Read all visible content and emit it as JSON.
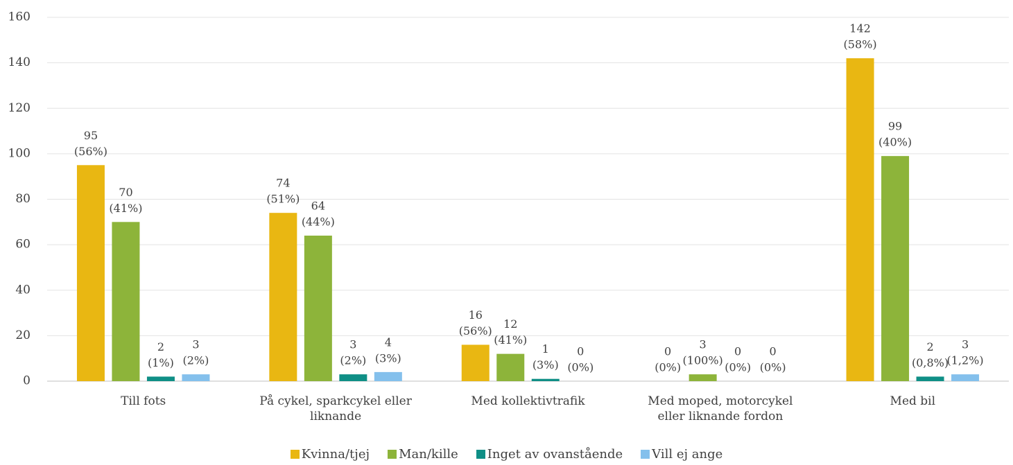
{
  "chart_data": {
    "type": "bar",
    "categories": [
      "Till fots",
      "På cykel, sparkcykel eller liknande",
      "Med kollektivtrafik",
      "Med moped, motorcykel eller liknande fordon",
      "Med bil"
    ],
    "series": [
      {
        "name": "Kvinna/tjej",
        "color": "#e9b712",
        "values": [
          95,
          74,
          16,
          0,
          142
        ],
        "value_labels": [
          [
            "95",
            "(56%)"
          ],
          [
            "74",
            "(51%)"
          ],
          [
            "16",
            "(56%)"
          ],
          [
            "0",
            "(0%)"
          ],
          [
            "142",
            "(58%)"
          ]
        ]
      },
      {
        "name": "Man/kille",
        "color": "#8db43a",
        "values": [
          70,
          64,
          12,
          3,
          99
        ],
        "value_labels": [
          [
            "70",
            "(41%)"
          ],
          [
            "64",
            "(44%)"
          ],
          [
            "12",
            "(41%)"
          ],
          [
            "3",
            "(100%)"
          ],
          [
            "99",
            "(40%)"
          ]
        ]
      },
      {
        "name": "Inget av ovanstående",
        "color": "#0f8f86",
        "values": [
          2,
          3,
          1,
          0,
          2
        ],
        "value_labels": [
          [
            "2",
            "(1%)"
          ],
          [
            "3",
            "(2%)"
          ],
          [
            "1",
            "(3%)"
          ],
          [
            "0",
            "(0%)"
          ],
          [
            "2",
            "(0,8%)"
          ]
        ]
      },
      {
        "name": "Vill ej ange",
        "color": "#84c0ec",
        "values": [
          3,
          4,
          0,
          0,
          3
        ],
        "value_labels": [
          [
            "3",
            "(2%)"
          ],
          [
            "4",
            "(3%)"
          ],
          [
            "0",
            "(0%)"
          ],
          [
            "0",
            "(0%)"
          ],
          [
            "3",
            "(1,2%)"
          ]
        ]
      }
    ],
    "ylim": [
      0,
      160
    ],
    "yticks": [
      0,
      20,
      40,
      60,
      80,
      100,
      120,
      140,
      160
    ],
    "grid": true,
    "legend": "bottom"
  }
}
